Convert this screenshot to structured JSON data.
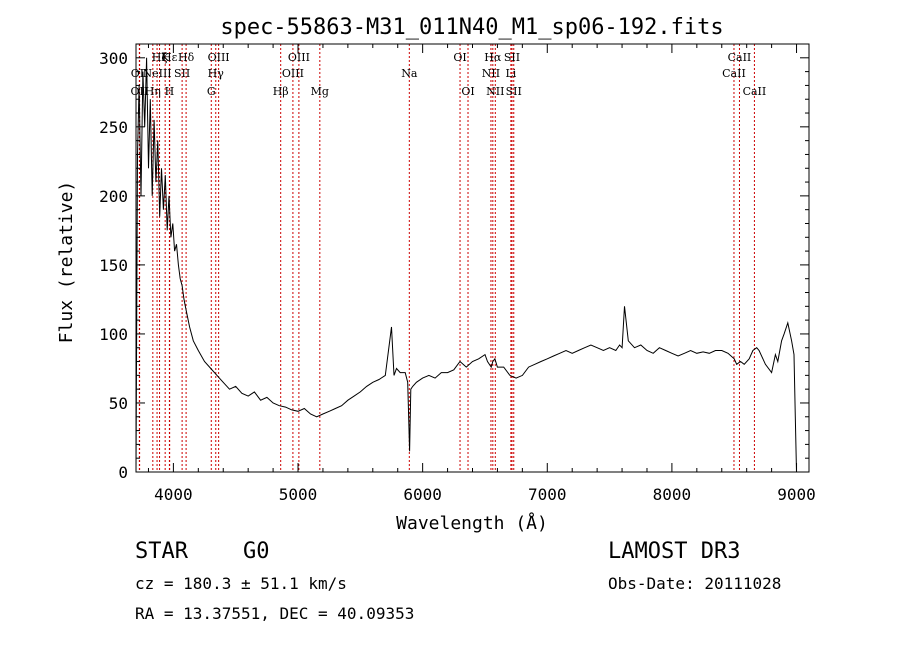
{
  "chart_data": {
    "type": "line",
    "title": "spec-55863-M31_011N40_M1_sp06-192.fits",
    "xlabel": "Wavelength (Å)",
    "ylabel": "Flux (relative)",
    "xlim": [
      3700,
      9100
    ],
    "ylim": [
      0,
      310
    ],
    "x_ticks": [
      4000,
      5000,
      6000,
      7000,
      8000,
      9000
    ],
    "y_ticks": [
      0,
      50,
      100,
      150,
      200,
      250,
      300
    ],
    "grid": false,
    "series": [
      {
        "name": "spectrum",
        "x": [
          3700,
          3712,
          3725,
          3740,
          3755,
          3770,
          3785,
          3800,
          3815,
          3830,
          3845,
          3860,
          3875,
          3890,
          3905,
          3920,
          3935,
          3950,
          3965,
          3980,
          3995,
          4010,
          4025,
          4040,
          4055,
          4070,
          4085,
          4100,
          4130,
          4160,
          4200,
          4250,
          4300,
          4350,
          4400,
          4450,
          4500,
          4550,
          4600,
          4650,
          4700,
          4750,
          4800,
          4850,
          4900,
          4950,
          5000,
          5050,
          5100,
          5150,
          5200,
          5250,
          5300,
          5350,
          5400,
          5450,
          5500,
          5550,
          5600,
          5650,
          5700,
          5750,
          5770,
          5790,
          5820,
          5860,
          5880,
          5895,
          5905,
          5920,
          5950,
          6000,
          6050,
          6100,
          6150,
          6200,
          6250,
          6300,
          6350,
          6400,
          6450,
          6500,
          6520,
          6550,
          6563,
          6580,
          6600,
          6650,
          6700,
          6750,
          6800,
          6850,
          6900,
          6950,
          7000,
          7050,
          7100,
          7150,
          7200,
          7250,
          7300,
          7350,
          7400,
          7450,
          7500,
          7550,
          7580,
          7600,
          7620,
          7650,
          7700,
          7750,
          7800,
          7850,
          7900,
          7950,
          8000,
          8050,
          8100,
          8150,
          8200,
          8250,
          8300,
          8350,
          8400,
          8450,
          8500,
          8520,
          8550,
          8580,
          8620,
          8650,
          8680,
          8700,
          8750,
          8800,
          8830,
          8850,
          8880,
          8900,
          8930,
          8960,
          8980,
          8990,
          9000
        ],
        "y": [
          0,
          230,
          280,
          200,
          290,
          250,
          300,
          220,
          270,
          200,
          255,
          210,
          240,
          185,
          220,
          190,
          215,
          175,
          200,
          170,
          180,
          160,
          165,
          150,
          140,
          135,
          125,
          118,
          105,
          95,
          88,
          80,
          75,
          70,
          65,
          60,
          62,
          57,
          55,
          58,
          52,
          54,
          50,
          48,
          47,
          45,
          44,
          46,
          42,
          40,
          42,
          44,
          46,
          48,
          52,
          55,
          58,
          62,
          65,
          67,
          70,
          105,
          70,
          75,
          72,
          72,
          65,
          15,
          60,
          62,
          65,
          68,
          70,
          68,
          72,
          72,
          74,
          80,
          76,
          80,
          82,
          85,
          80,
          76,
          80,
          82,
          76,
          76,
          70,
          68,
          70,
          76,
          78,
          80,
          82,
          84,
          86,
          88,
          86,
          88,
          90,
          92,
          90,
          88,
          90,
          88,
          92,
          90,
          120,
          95,
          90,
          92,
          88,
          86,
          90,
          88,
          86,
          84,
          86,
          88,
          86,
          87,
          86,
          88,
          88,
          86,
          82,
          78,
          80,
          78,
          82,
          88,
          90,
          88,
          78,
          72,
          85,
          80,
          95,
          100,
          108,
          95,
          85,
          40,
          0
        ]
      }
    ],
    "lines": [
      {
        "label": "Hε",
        "x": 3970,
        "row": 1
      },
      {
        "label": "OII",
        "x": 3727,
        "row": 3
      },
      {
        "label": "OII",
        "x": 3729,
        "row": 2
      },
      {
        "label": "Hη",
        "x": 3835,
        "row": 3
      },
      {
        "label": "Hζ",
        "x": 3889,
        "row": 1
      },
      {
        "label": "NeIII",
        "x": 3869,
        "row": 2
      },
      {
        "label": "K",
        "x": 3934,
        "row": 1
      },
      {
        "label": "SII",
        "x": 4070,
        "row": 2
      },
      {
        "label": "H",
        "x": 3968,
        "row": 3
      },
      {
        "label": "Hδ",
        "x": 4102,
        "row": 1
      },
      {
        "label": "OIII",
        "x": 4363,
        "row": 1
      },
      {
        "label": "Hγ",
        "x": 4340,
        "row": 2
      },
      {
        "label": "G",
        "x": 4304,
        "row": 3
      },
      {
        "label": "Hβ",
        "x": 4861,
        "row": 3
      },
      {
        "label": "OIII",
        "x": 4959,
        "row": 2
      },
      {
        "label": "OIII",
        "x": 5007,
        "row": 1
      },
      {
        "label": "Mg",
        "x": 5175,
        "row": 3
      },
      {
        "label": "Na",
        "x": 5893,
        "row": 2
      },
      {
        "label": "OI",
        "x": 6300,
        "row": 1
      },
      {
        "label": "OI",
        "x": 6364,
        "row": 3
      },
      {
        "label": "Hα",
        "x": 6563,
        "row": 1
      },
      {
        "label": "NII",
        "x": 6548,
        "row": 2
      },
      {
        "label": "NII",
        "x": 6583,
        "row": 3
      },
      {
        "label": "SII",
        "x": 6717,
        "row": 1
      },
      {
        "label": "Li",
        "x": 6708,
        "row": 2
      },
      {
        "label": "SII",
        "x": 6731,
        "row": 3
      },
      {
        "label": "CaII",
        "x": 8542,
        "row": 1
      },
      {
        "label": "CaII",
        "x": 8498,
        "row": 2
      },
      {
        "label": "CaII",
        "x": 8662,
        "row": 3
      }
    ]
  },
  "info": {
    "class": "STAR",
    "subclass": "G0",
    "survey": "LAMOST DR3",
    "cz": "cz = 180.3 ± 51.1 km/s",
    "obs_date": "Obs-Date: 20111028",
    "radec": "RA =  13.37551, DEC =  40.09353"
  },
  "colors": {
    "spectrum": "#000000",
    "line_marker": "#cc0000",
    "background": "#ffffff"
  }
}
